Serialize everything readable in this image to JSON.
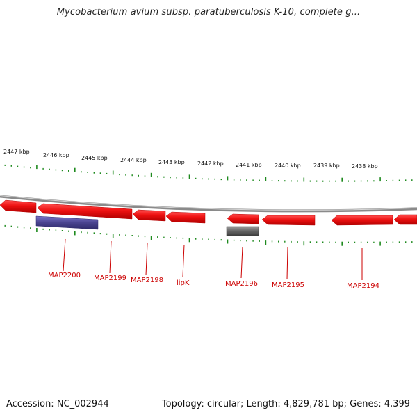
{
  "header": {
    "title": "Mycobacterium avium subsp. paratuberculosis K-10, complete g..."
  },
  "footer": {
    "accession": "Accession: NC_002944",
    "summary": "Topology: circular; Length: 4,829,781 bp; Genes: 4,399"
  },
  "scale_labels": [
    "2447 kbp",
    "2446 kbp",
    "2445 kbp",
    "2444 kbp",
    "2443 kbp",
    "2442 kbp",
    "2441 kbp",
    "2440 kbp",
    "2439 kbp",
    "2438 kbp"
  ],
  "gene_labels": [
    "MAP2200",
    "MAP2199",
    "MAP2198",
    "lipK",
    "MAP2196",
    "MAP2195",
    "MAP2194"
  ],
  "colors": {
    "gene": "#ee1111",
    "gene_dark": "#b80000",
    "backbone": "#8a8a8a",
    "tick": "#1e8a1e",
    "label": "#cc0000",
    "blue_feature": "#4a4490",
    "gray_feature": "#6a6a6a"
  }
}
